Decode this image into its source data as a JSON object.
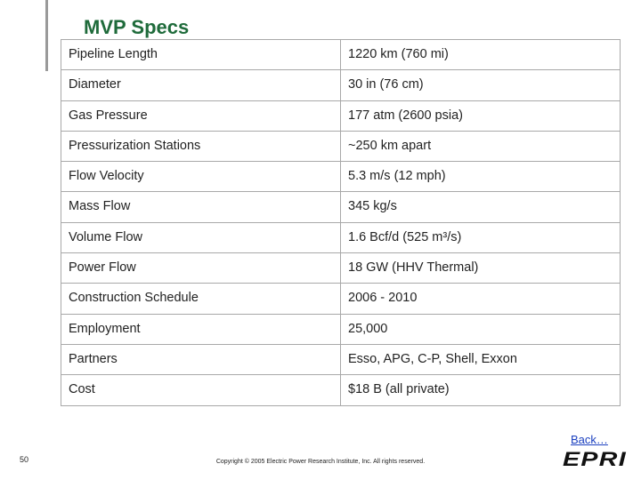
{
  "header": {
    "title": "MVP Specs"
  },
  "table": {
    "rows": [
      [
        "Pipeline Length",
        "1220 km (760 mi)"
      ],
      [
        "Diameter",
        "30 in (76 cm)"
      ],
      [
        "Gas Pressure",
        "177 atm (2600 psia)"
      ],
      [
        "Pressurization Stations",
        "~250 km apart"
      ],
      [
        "Flow Velocity",
        "5.3 m/s (12 mph)"
      ],
      [
        "Mass Flow",
        "345 kg/s"
      ],
      [
        "Volume Flow",
        "1.6 Bcf/d (525 m³/s)"
      ],
      [
        "Power Flow",
        "18 GW (HHV Thermal)"
      ],
      [
        "Construction Schedule",
        "2006 - 2010"
      ],
      [
        "Employment",
        "25,000"
      ],
      [
        "Partners",
        "Esso, APG, C-P, Shell, Exxon"
      ],
      [
        "Cost",
        "$18 B (all private)"
      ]
    ]
  },
  "footer": {
    "link": "Back…",
    "page_number": "50",
    "copyright": "Copyright © 2005 Electric Power Research Institute, Inc. All rights reserved.",
    "logo": "EPRI"
  }
}
